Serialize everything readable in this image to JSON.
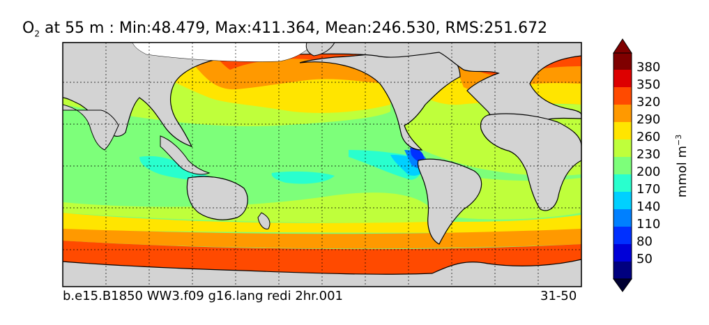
{
  "title": {
    "species": "O",
    "species_sub": "2",
    "rest": " at 55 m : Min:48.479, Max:411.364, Mean:246.530, RMS:251.672"
  },
  "footer": {
    "case_name": "b.e15.B1850 WW3.f09 g16.lang redi 2hr.001",
    "years": "31-50"
  },
  "colorbar": {
    "units_text": "mmol m",
    "units_exp": "−3",
    "ticks": [
      "380",
      "350",
      "320",
      "290",
      "260",
      "230",
      "200",
      "170",
      "140",
      "110",
      "80",
      "50"
    ],
    "colors": [
      "#00007f",
      "#0000d8",
      "#0030ff",
      "#0080ff",
      "#00d0ff",
      "#29ffce",
      "#7dff7a",
      "#bfff3b",
      "#ffe500",
      "#ff9900",
      "#ff4a00",
      "#dd0000",
      "#7f0000"
    ]
  },
  "map_colors": {
    "land": "#d3d3d3",
    "ice": "#ffffff"
  }
}
